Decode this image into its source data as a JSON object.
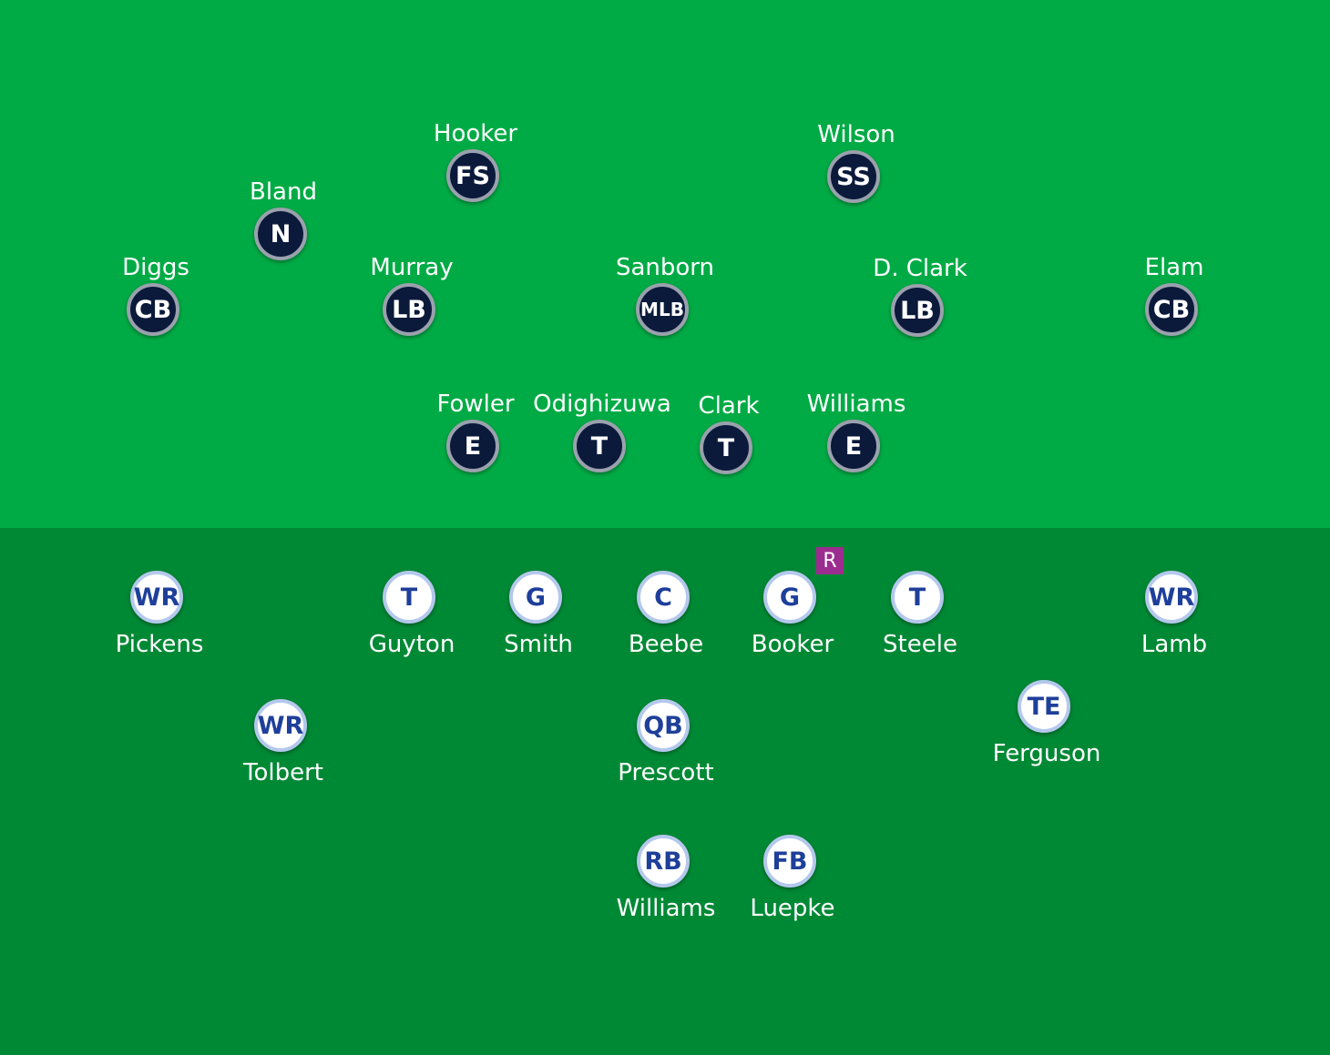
{
  "defense": [
    {
      "position": "FS",
      "name": "Hooker"
    },
    {
      "position": "SS",
      "name": "Wilson"
    },
    {
      "position": "N",
      "name": "Bland"
    },
    {
      "position": "CB",
      "name": "Diggs"
    },
    {
      "position": "LB",
      "name": "Murray"
    },
    {
      "position": "MLB",
      "name": "Sanborn"
    },
    {
      "position": "LB",
      "name": "D. Clark"
    },
    {
      "position": "CB",
      "name": "Elam"
    },
    {
      "position": "E",
      "name": "Fowler"
    },
    {
      "position": "T",
      "name": "Odighizuwa"
    },
    {
      "position": "T",
      "name": "Clark"
    },
    {
      "position": "E",
      "name": "Williams"
    }
  ],
  "offense": [
    {
      "position": "WR",
      "name": "Pickens"
    },
    {
      "position": "T",
      "name": "Guyton"
    },
    {
      "position": "G",
      "name": "Smith"
    },
    {
      "position": "C",
      "name": "Beebe"
    },
    {
      "position": "G",
      "name": "Booker",
      "badge": "R"
    },
    {
      "position": "T",
      "name": "Steele"
    },
    {
      "position": "WR",
      "name": "Lamb"
    },
    {
      "position": "WR",
      "name": "Tolbert"
    },
    {
      "position": "QB",
      "name": "Prescott"
    },
    {
      "position": "TE",
      "name": "Ferguson"
    },
    {
      "position": "RB",
      "name": "Williams"
    },
    {
      "position": "FB",
      "name": "Luepke"
    }
  ],
  "colors": {
    "defense_field": "#00ab45",
    "offense_field": "#008935",
    "defense_token": "#0b1a3b",
    "offense_token_text": "#1e3f9a",
    "rookie_badge": "#9c2c8f"
  }
}
